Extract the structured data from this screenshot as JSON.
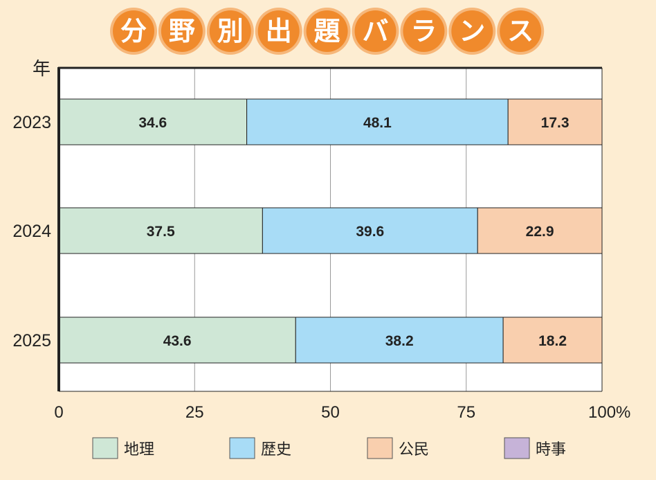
{
  "title_chars": [
    "分",
    "野",
    "別",
    "出",
    "題",
    "バ",
    "ラ",
    "ン",
    "ス"
  ],
  "colors": {
    "title_circle": "#f08a2c",
    "title_ring": "#f6b77a",
    "background": "#fdedd2",
    "plot": "#ffffff"
  },
  "chart_data": {
    "type": "bar",
    "orientation": "horizontal-stacked-100",
    "title": "分野別出題バランス",
    "ylabel": "年",
    "xlabel": "",
    "xlim": [
      0,
      100
    ],
    "x_ticks": [
      "0",
      "25",
      "50",
      "75",
      "100%"
    ],
    "x_tick_values": [
      0,
      25,
      50,
      75,
      100
    ],
    "grid": true,
    "categories": [
      "2023",
      "2024",
      "2025"
    ],
    "series": [
      {
        "name": "地理",
        "color": "#cfe7d6",
        "values": [
          34.6,
          37.5,
          43.6
        ]
      },
      {
        "name": "歴史",
        "color": "#a8dcf6",
        "values": [
          48.1,
          39.6,
          38.2
        ]
      },
      {
        "name": "公民",
        "color": "#f9cfae",
        "values": [
          17.3,
          22.9,
          18.2
        ]
      },
      {
        "name": "時事",
        "color": "#c6b3d8",
        "values": [
          0,
          0,
          0
        ]
      }
    ],
    "legend_position": "bottom"
  }
}
